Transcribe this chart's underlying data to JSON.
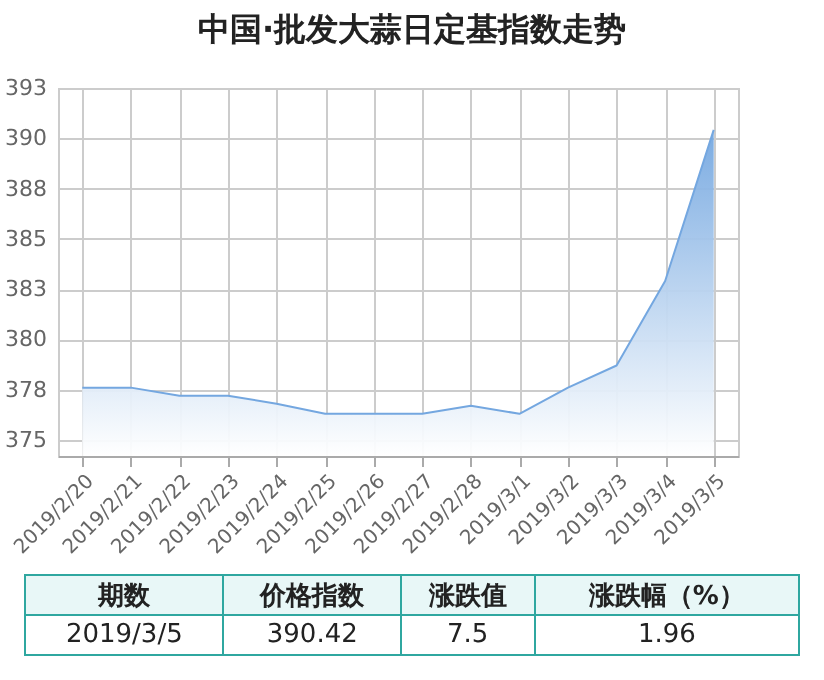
{
  "chart_data": {
    "type": "area",
    "title": "中国·批发大蒜日定基指数走势",
    "categories": [
      "2019/2/20",
      "2019/2/21",
      "2019/2/22",
      "2019/2/23",
      "2019/2/24",
      "2019/2/25",
      "2019/2/26",
      "2019/2/27",
      "2019/2/28",
      "2019/3/1",
      "2019/3/2",
      "2019/3/3",
      "2019/3/4",
      "2019/3/5"
    ],
    "series": [
      {
        "color": "#74a7e0",
        "values": [
          377.6,
          377.6,
          377.2,
          377.2,
          376.8,
          376.3,
          376.3,
          376.3,
          376.7,
          376.3,
          377.6,
          378.7,
          382.9,
          390.42
        ]
      }
    ],
    "ylim": [
      374.2,
      392.5
    ],
    "yticks": [
      {
        "value": 375,
        "label": "375"
      },
      {
        "value": 377.5,
        "label": "378"
      },
      {
        "value": 380,
        "label": "380"
      },
      {
        "value": 382.5,
        "label": "383"
      },
      {
        "value": 385,
        "label": "385"
      },
      {
        "value": 387.5,
        "label": "388"
      },
      {
        "value": 390,
        "label": "390"
      },
      {
        "value": 392.5,
        "label": "393"
      }
    ],
    "grid": true,
    "annotations": [
      "期数",
      "价格指数",
      "涨跌值",
      "涨跌幅（%）",
      "2019/3/5",
      "390.42",
      "7.5",
      "1.96"
    ]
  }
}
